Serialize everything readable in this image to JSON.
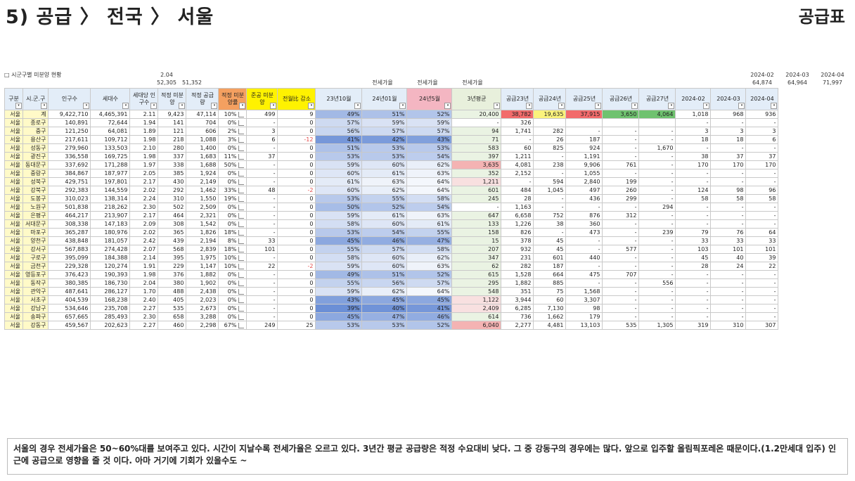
{
  "page_title": "5) 공급 〉 전국 〉 서울",
  "page_title_right": "공급표",
  "caption": "□ 시군구별 미분양 현황",
  "top_numbers": {
    "per_household": "2.04",
    "population_total": "52,305",
    "households_total": "51,352",
    "m2024_02_label": "2024-02",
    "m2024_02_total": "64,874",
    "m2024_03_label": "2024-03",
    "m2024_03_total": "64,964",
    "m2024_04_label": "2024-04",
    "m2024_04_total": "71,997"
  },
  "group_labels": {
    "jeonse1": "전세가율",
    "jeonse2": "전세가율",
    "jeonse3": "전세가율"
  },
  "headers": [
    "구분",
    "시.군.구",
    "인구수",
    "세대수",
    "세대당 인구수",
    "적정 미분양",
    "적정 공급량",
    "적정 미분양률",
    "준공 미분양",
    "전월比 감소",
    "23년10월",
    "24년01월",
    "24년5월",
    "3년평균",
    "공급23년",
    "공급24년",
    "공급25년",
    "공급26년",
    "공급27년",
    "2024-02",
    "2024-03",
    "2024-04"
  ],
  "rows": [
    [
      "서울",
      "계",
      "9,422,710",
      "4,465,391",
      "2.11",
      "9,423",
      "47,114",
      "10%",
      "499",
      "9",
      "49%",
      "51%",
      "52%",
      "20,400",
      "38,782",
      "19,635",
      "37,915",
      "3,650",
      "4,064",
      "1,018",
      "968",
      "936"
    ],
    [
      "서울",
      "종로구",
      "140,891",
      "72,644",
      "1.94",
      "141",
      "704",
      "0%",
      "-",
      "0",
      "57%",
      "59%",
      "59%",
      "-",
      "326",
      "",
      "",
      "",
      "",
      "-",
      "-",
      "-"
    ],
    [
      "서울",
      "중구",
      "121,250",
      "64,081",
      "1.89",
      "121",
      "606",
      "2%",
      "3",
      "0",
      "56%",
      "57%",
      "57%",
      "94",
      "1,741",
      "282",
      "-",
      "-",
      "-",
      "3",
      "3",
      "3"
    ],
    [
      "서울",
      "용산구",
      "217,611",
      "109,712",
      "1.98",
      "218",
      "1,088",
      "3%",
      "6",
      "-12",
      "41%",
      "42%",
      "43%",
      "71",
      "-",
      "26",
      "187",
      "-",
      "-",
      "18",
      "18",
      "6"
    ],
    [
      "서울",
      "성동구",
      "279,960",
      "133,503",
      "2.10",
      "280",
      "1,400",
      "0%",
      "-",
      "0",
      "51%",
      "53%",
      "53%",
      "583",
      "60",
      "825",
      "924",
      "-",
      "1,670",
      "-",
      "-",
      "-"
    ],
    [
      "서울",
      "광진구",
      "336,558",
      "169,725",
      "1.98",
      "337",
      "1,683",
      "11%",
      "37",
      "0",
      "53%",
      "53%",
      "54%",
      "397",
      "1,211",
      "-",
      "1,191",
      "-",
      "-",
      "38",
      "37",
      "37"
    ],
    [
      "서울",
      "동대문구",
      "337,692",
      "171,288",
      "1.97",
      "338",
      "1,688",
      "50%",
      "-",
      "0",
      "59%",
      "60%",
      "62%",
      "3,635",
      "4,081",
      "238",
      "9,906",
      "761",
      "-",
      "170",
      "170",
      "170"
    ],
    [
      "서울",
      "중랑구",
      "384,867",
      "187,977",
      "2.05",
      "385",
      "1,924",
      "0%",
      "-",
      "0",
      "60%",
      "61%",
      "63%",
      "352",
      "2,152",
      "-",
      "1,055",
      "-",
      "-",
      "-",
      "-",
      "-"
    ],
    [
      "서울",
      "성북구",
      "429,751",
      "197,801",
      "2.17",
      "430",
      "2,149",
      "0%",
      "-",
      "0",
      "61%",
      "63%",
      "64%",
      "1,211",
      "-",
      "594",
      "2,840",
      "199",
      "-",
      "-",
      "-",
      "-"
    ],
    [
      "서울",
      "강북구",
      "292,383",
      "144,559",
      "2.02",
      "292",
      "1,462",
      "33%",
      "48",
      "-2",
      "60%",
      "62%",
      "64%",
      "601",
      "484",
      "1,045",
      "497",
      "260",
      "-",
      "124",
      "98",
      "96"
    ],
    [
      "서울",
      "도봉구",
      "310,023",
      "138,314",
      "2.24",
      "310",
      "1,550",
      "19%",
      "-",
      "0",
      "53%",
      "55%",
      "58%",
      "245",
      "28",
      "-",
      "436",
      "299",
      "-",
      "58",
      "58",
      "58"
    ],
    [
      "서울",
      "노원구",
      "501,838",
      "218,262",
      "2.30",
      "502",
      "2,509",
      "0%",
      "-",
      "0",
      "50%",
      "52%",
      "54%",
      "-",
      "1,163",
      "-",
      "-",
      "-",
      "294",
      "-",
      "-",
      "-"
    ],
    [
      "서울",
      "은평구",
      "464,217",
      "213,907",
      "2.17",
      "464",
      "2,321",
      "0%",
      "-",
      "0",
      "59%",
      "61%",
      "63%",
      "647",
      "6,658",
      "752",
      "876",
      "312",
      "-",
      "-",
      "-",
      "-"
    ],
    [
      "서울",
      "서대문구",
      "308,338",
      "147,183",
      "2.09",
      "308",
      "1,542",
      "0%",
      "-",
      "0",
      "58%",
      "60%",
      "61%",
      "133",
      "1,226",
      "38",
      "360",
      "-",
      "-",
      "-",
      "-",
      "-"
    ],
    [
      "서울",
      "마포구",
      "365,287",
      "180,976",
      "2.02",
      "365",
      "1,826",
      "18%",
      "-",
      "0",
      "53%",
      "54%",
      "55%",
      "158",
      "826",
      "-",
      "473",
      "-",
      "239",
      "79",
      "76",
      "64"
    ],
    [
      "서울",
      "양천구",
      "438,848",
      "181,057",
      "2.42",
      "439",
      "2,194",
      "8%",
      "33",
      "0",
      "45%",
      "46%",
      "47%",
      "15",
      "378",
      "45",
      "-",
      "-",
      "-",
      "33",
      "33",
      "33"
    ],
    [
      "서울",
      "강서구",
      "567,883",
      "274,428",
      "2.07",
      "568",
      "2,839",
      "18%",
      "101",
      "0",
      "55%",
      "57%",
      "58%",
      "207",
      "932",
      "45",
      "-",
      "577",
      "-",
      "103",
      "101",
      "101"
    ],
    [
      "서울",
      "구로구",
      "395,099",
      "184,388",
      "2.14",
      "395",
      "1,975",
      "10%",
      "-",
      "0",
      "58%",
      "60%",
      "62%",
      "347",
      "231",
      "601",
      "440",
      "-",
      "-",
      "45",
      "40",
      "39"
    ],
    [
      "서울",
      "금천구",
      "229,328",
      "120,274",
      "1.91",
      "229",
      "1,147",
      "10%",
      "22",
      "-2",
      "59%",
      "60%",
      "63%",
      "62",
      "282",
      "187",
      "-",
      "-",
      "-",
      "28",
      "24",
      "22"
    ],
    [
      "서울",
      "영등포구",
      "376,423",
      "190,393",
      "1.98",
      "376",
      "1,882",
      "0%",
      "-",
      "0",
      "49%",
      "51%",
      "52%",
      "615",
      "1,528",
      "664",
      "475",
      "707",
      "-",
      "-",
      "-",
      "-"
    ],
    [
      "서울",
      "동작구",
      "380,385",
      "186,730",
      "2.04",
      "380",
      "1,902",
      "0%",
      "-",
      "0",
      "55%",
      "56%",
      "57%",
      "295",
      "1,882",
      "885",
      "-",
      "-",
      "556",
      "-",
      "-",
      "-"
    ],
    [
      "서울",
      "관악구",
      "487,641",
      "286,127",
      "1.70",
      "488",
      "2,438",
      "0%",
      "-",
      "0",
      "59%",
      "62%",
      "64%",
      "548",
      "351",
      "75",
      "1,568",
      "-",
      "-",
      "-",
      "-",
      "-"
    ],
    [
      "서울",
      "서초구",
      "404,539",
      "168,238",
      "2.40",
      "405",
      "2,023",
      "0%",
      "-",
      "0",
      "43%",
      "45%",
      "45%",
      "1,122",
      "3,944",
      "60",
      "3,307",
      "-",
      "-",
      "-",
      "-",
      "-"
    ],
    [
      "서울",
      "강남구",
      "534,646",
      "235,708",
      "2.27",
      "535",
      "2,673",
      "0%",
      "-",
      "0",
      "39%",
      "40%",
      "41%",
      "2,409",
      "6,285",
      "7,130",
      "98",
      "-",
      "-",
      "-",
      "-",
      "-"
    ],
    [
      "서울",
      "송파구",
      "657,665",
      "285,493",
      "2.30",
      "658",
      "3,288",
      "0%",
      "-",
      "0",
      "45%",
      "47%",
      "46%",
      "614",
      "736",
      "1,662",
      "179",
      "-",
      "-",
      "-",
      "-",
      "-"
    ],
    [
      "서울",
      "강동구",
      "459,567",
      "202,623",
      "2.27",
      "460",
      "2,298",
      "67%",
      "249",
      "25",
      "53%",
      "53%",
      "52%",
      "6,040",
      "2,277",
      "4,481",
      "13,103",
      "535",
      "1,305",
      "319",
      "310",
      "307"
    ]
  ],
  "note": "서울의 경우 전세가율은 50~60%대를 보여주고 있다. 시간이 지날수록 전세가율은 오르고 있다. 3년간 평균 공급량은 적정 수요대비 낮다. 그 중 강동구의 경우에는 많다. 앞으로 입주할 올림픽포레온 때문이다.(1.2만세대 입주) 인근에 공급으로 영향을 줄 것 이다. 아마 거기에 기회가 있을수도 ~",
  "colors": {
    "header_blue": "#e3edf8",
    "yellow_header": "#fff200",
    "orange_header": "#f4a060",
    "pink_header": "#f4b6c2",
    "green_header": "#e8f0dc",
    "jeonse_dark": "#6b8fd6",
    "jeonse_light": "#f4f7fc"
  }
}
